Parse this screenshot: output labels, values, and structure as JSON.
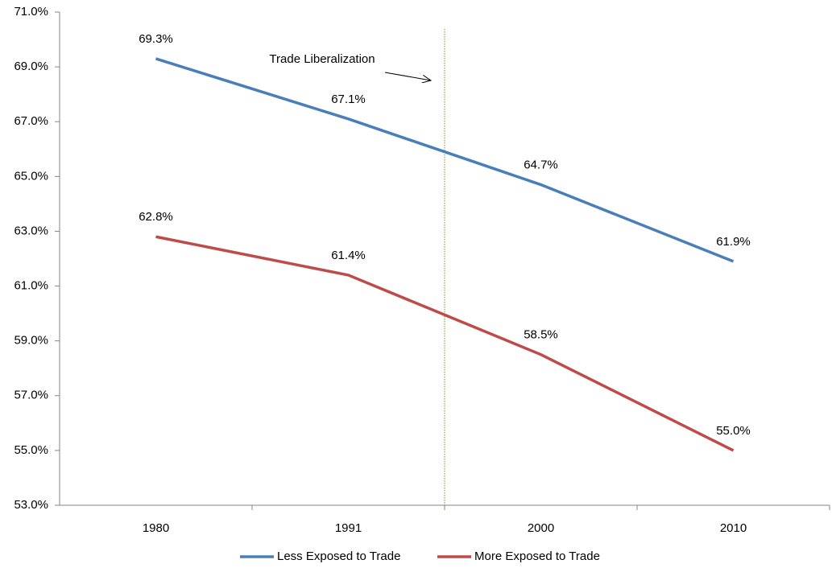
{
  "chart_data": {
    "type": "line",
    "annotation": "Trade Liberalization",
    "categories": [
      "1980",
      "1991",
      "2000",
      "2010"
    ],
    "series": [
      {
        "name": "Less Exposed to Trade",
        "color": "#4a7ebb",
        "values": [
          69.3,
          67.1,
          64.7,
          61.9
        ],
        "value_labels": [
          "69.3%",
          "67.1%",
          "64.7%",
          "61.9%"
        ]
      },
      {
        "name": "More Exposed to Trade",
        "color": "#be4b48",
        "values": [
          62.8,
          61.4,
          58.5,
          55.0
        ],
        "value_labels": [
          "62.8%",
          "61.4%",
          "58.5%",
          "55.0%"
        ]
      }
    ],
    "ylim": [
      53,
      71
    ],
    "yticks": [
      {
        "value": 53,
        "label": "53.0%"
      },
      {
        "value": 55,
        "label": "55.0%"
      },
      {
        "value": 57,
        "label": "57.0%"
      },
      {
        "value": 59,
        "label": "59.0%"
      },
      {
        "value": 61,
        "label": "61.0%"
      },
      {
        "value": 63,
        "label": "63.0%"
      },
      {
        "value": 65,
        "label": "65.0%"
      },
      {
        "value": 67,
        "label": "67.0%"
      },
      {
        "value": 69,
        "label": "69.0%"
      },
      {
        "value": 71,
        "label": "71.0%"
      }
    ],
    "grid": false,
    "legend": "bottom"
  }
}
